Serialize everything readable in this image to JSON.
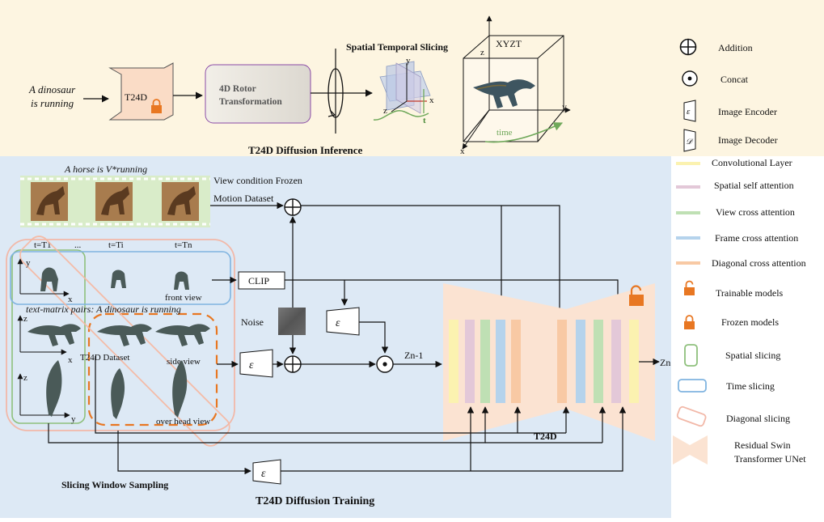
{
  "inference": {
    "prompt_line1": "A dinosaur",
    "prompt_line2": "is running",
    "t24d_label": "T24D",
    "rotor_line1": "4D Rotor",
    "rotor_line2": "Transformation",
    "slicing_title": "Spatial Temporal Slicing",
    "axis_y": "y",
    "axis_x": "x",
    "axis_z": "z",
    "axis_t": "t",
    "xyzt_label": "XYZT",
    "cube_z": "z",
    "cube_y": "y",
    "cube_x": "x",
    "time_label": "time",
    "title": "T24D Diffusion Inference"
  },
  "training": {
    "horse_caption": "A horse is V*running",
    "view_condition": "View condition Frozen",
    "motion_dataset": "Motion Dataset",
    "t1": "t=T1",
    "dots": "...",
    "ti": "t=Ti",
    "tn": "t=Tn",
    "y_axis": "y",
    "x_axis": "x",
    "z_axis": "z",
    "front_view": "front view",
    "text_matrix": "text-matrix pairs: A dinosaur is running",
    "dataset_label": "T24D Dataset",
    "side_view": "side view",
    "overhead_view": "over head view",
    "clip": "CLIP",
    "noise": "Noise",
    "encoder_symbol": "ε",
    "zn_1": "Zn-1",
    "zn": "Zn",
    "unet_label": "T24D",
    "sliding_window": "Slicing Window Sampling",
    "title": "T24D Diffusion Training"
  },
  "legend": [
    {
      "key": "addition",
      "label": "Addition"
    },
    {
      "key": "concat",
      "label": "Concat"
    },
    {
      "key": "image-encoder",
      "label": "Image Encoder",
      "symbol": "ε"
    },
    {
      "key": "image-decoder",
      "label": "Image Decoder",
      "symbol": "𝒟"
    },
    {
      "key": "convolutional-layer",
      "label": "Convolutional Layer"
    },
    {
      "key": "spatial-self-attention",
      "label": "Spatial self attention"
    },
    {
      "key": "view-cross-attention",
      "label": "View cross attention"
    },
    {
      "key": "frame-cross-attention",
      "label": "Frame cross attention"
    },
    {
      "key": "diagonal-cross-attention",
      "label": "Diagonal  cross attention"
    },
    {
      "key": "trainable-models",
      "label": "Trainable models"
    },
    {
      "key": "frozen-models",
      "label": "Frozen models"
    },
    {
      "key": "spatial-slicing",
      "label": "Spatial slicing"
    },
    {
      "key": "time-slicing",
      "label": "Time slicing"
    },
    {
      "key": "diagonal-slicing",
      "label": "Diagonal slicing"
    },
    {
      "key": "unet",
      "label": "Residual Swin",
      "label2": "Transformer UNet"
    }
  ],
  "colors": {
    "top_bg": "#fdf5e1",
    "bottom_bg": "#dde9f5",
    "conv": "#fbf2b0",
    "spatial_self": "#e3c8d8",
    "view_cross": "#bfe0b4",
    "frame_cross": "#b5d3ec",
    "diagonal_cross": "#f8c9a4",
    "unet_fill": "#fbe3d2",
    "orange": "#e87722",
    "green_frame": "#8ec07c",
    "blue_frame": "#80b4e0",
    "pink_frame": "#f2b8a8"
  },
  "icons": [
    "addition-icon",
    "concat-icon",
    "encoder-icon",
    "decoder-icon",
    "lock-open-icon",
    "lock-closed-icon",
    "dinosaur-image",
    "horse-image"
  ]
}
